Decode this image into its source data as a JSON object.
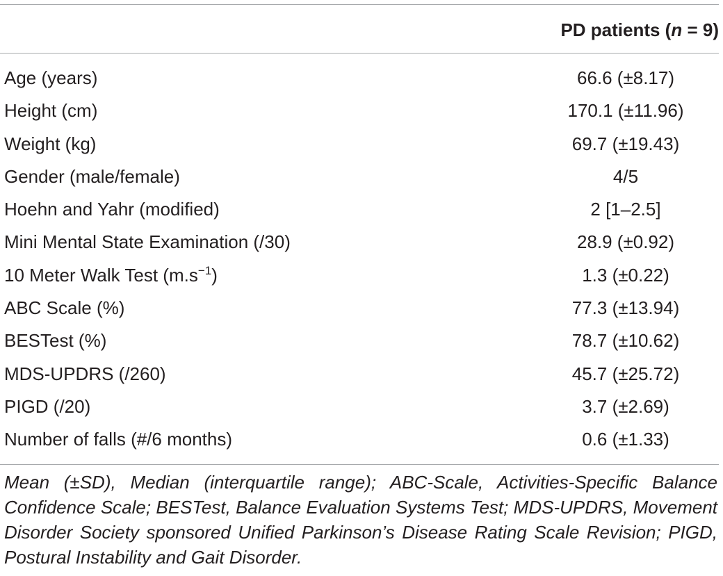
{
  "table": {
    "column_header_prefix": "PD patients (",
    "column_header_n": "n",
    "column_header_suffix": " = 9)",
    "rows": [
      {
        "label": "Age (years)",
        "value": "66.6 (±8.17)"
      },
      {
        "label": "Height (cm)",
        "value": "170.1 (±11.96)"
      },
      {
        "label": "Weight (kg)",
        "value": "69.7 (±19.43)"
      },
      {
        "label": "Gender (male/female)",
        "value": "4/5"
      },
      {
        "label": "Hoehn and Yahr (modified)",
        "value": "2 [1–2.5]"
      },
      {
        "label": "Mini Mental State Examination (/30)",
        "value": "28.9 (±0.92)"
      },
      {
        "label": "10 Meter Walk Test (m.s",
        "label_sup": "−1",
        "label_suffix": ")",
        "value": "1.3 (±0.22)"
      },
      {
        "label": "ABC Scale (%)",
        "value": "77.3 (±13.94)"
      },
      {
        "label": "BESTest (%)",
        "value": "78.7 (±10.62)"
      },
      {
        "label": "MDS-UPDRS (/260)",
        "value": "45.7 (±25.72)"
      },
      {
        "label": "PIGD (/20)",
        "value": "3.7 (±2.69)"
      },
      {
        "label": "Number of falls (#/6 months)",
        "value": "0.6 (±1.33)"
      }
    ]
  },
  "footnote": "Mean (±SD), Median (interquartile range); ABC-Scale, Activities-Specific Balance Confidence Scale; BESTest, Balance Evaluation Systems Test; MDS-UPDRS, Movement Disorder Society sponsored Unified Parkinson’s Disease Rating Scale Revision; PIGD, Postural Instability and Gait Disorder."
}
